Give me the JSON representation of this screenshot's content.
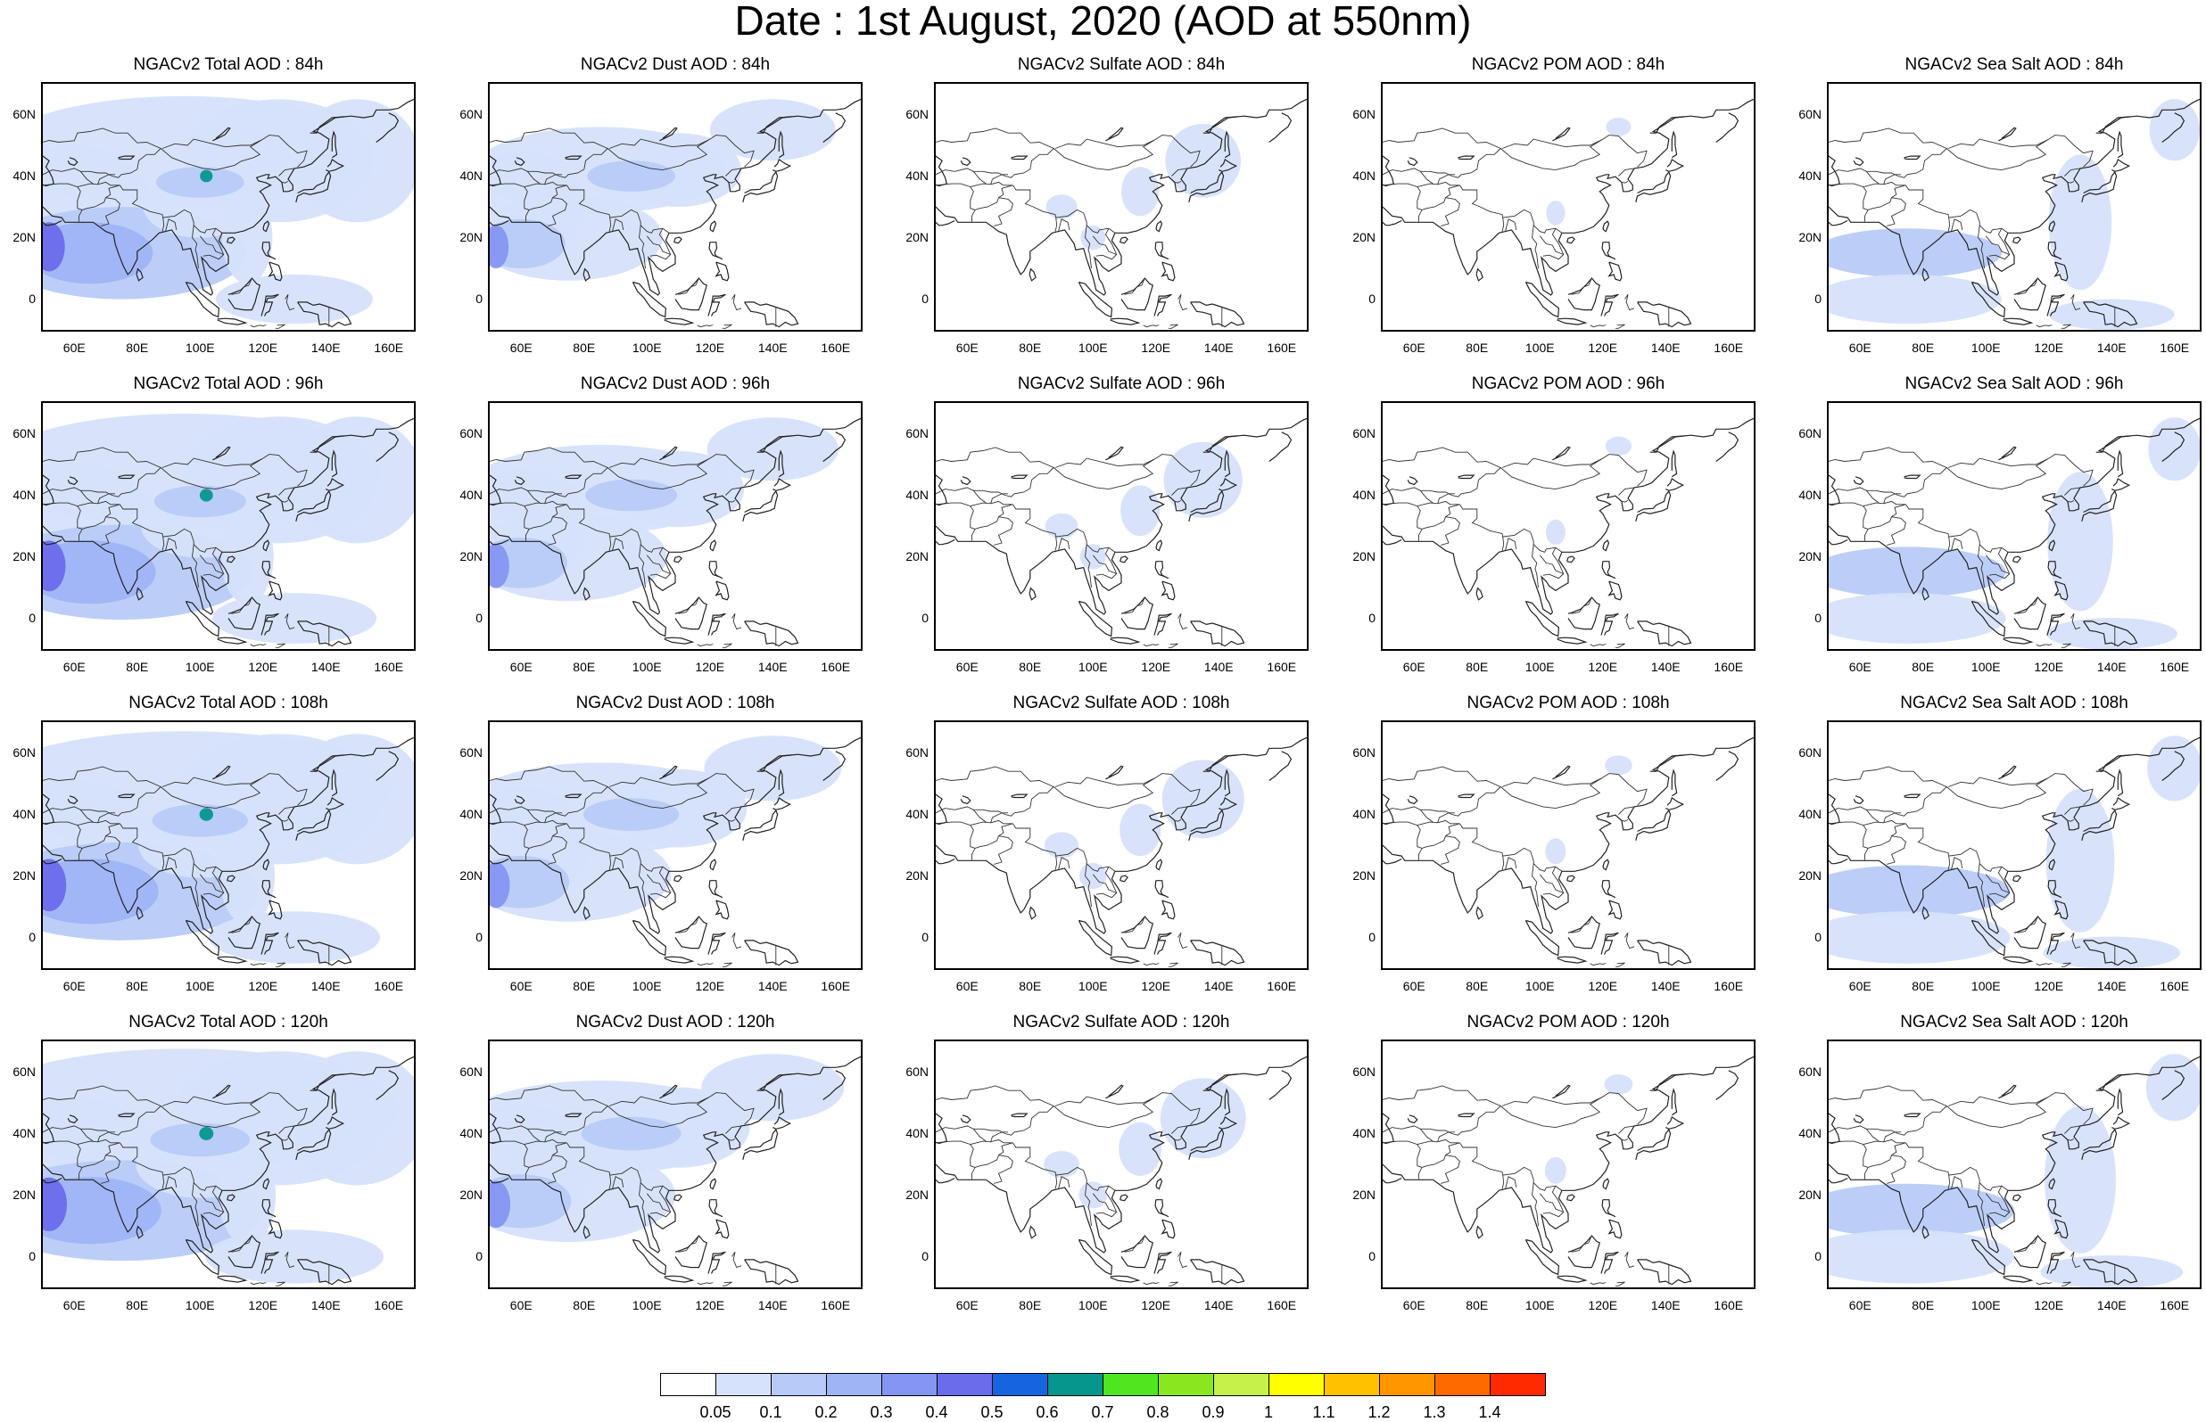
{
  "title": "Date : 1st August, 2020 (AOD at 550nm)",
  "axes": {
    "lat_labels": [
      "60N",
      "40N",
      "20N",
      "0"
    ],
    "lon_labels": [
      "60E",
      "80E",
      "100E",
      "120E",
      "140E",
      "160E"
    ]
  },
  "panels": [
    {
      "title": "NGACv2 Total AOD : 84h",
      "type": "total"
    },
    {
      "title": "NGACv2 Dust AOD : 84h",
      "type": "dust"
    },
    {
      "title": "NGACv2 Sulfate AOD : 84h",
      "type": "sulfate"
    },
    {
      "title": "NGACv2 POM AOD : 84h",
      "type": "pom"
    },
    {
      "title": "NGACv2 Sea Salt AOD : 84h",
      "type": "seasalt"
    },
    {
      "title": "NGACv2 Total AOD : 96h",
      "type": "total"
    },
    {
      "title": "NGACv2 Dust AOD : 96h",
      "type": "dust"
    },
    {
      "title": "NGACv2 Sulfate AOD : 96h",
      "type": "sulfate"
    },
    {
      "title": "NGACv2 POM AOD : 96h",
      "type": "pom"
    },
    {
      "title": "NGACv2 Sea Salt AOD : 96h",
      "type": "seasalt"
    },
    {
      "title": "NGACv2 Total AOD : 108h",
      "type": "total"
    },
    {
      "title": "NGACv2 Dust AOD : 108h",
      "type": "dust"
    },
    {
      "title": "NGACv2 Sulfate AOD : 108h",
      "type": "sulfate"
    },
    {
      "title": "NGACv2 POM AOD : 108h",
      "type": "pom"
    },
    {
      "title": "NGACv2 Sea Salt AOD : 108h",
      "type": "seasalt"
    },
    {
      "title": "NGACv2 Total AOD : 120h",
      "type": "total"
    },
    {
      "title": "NGACv2 Dust AOD : 120h",
      "type": "dust"
    },
    {
      "title": "NGACv2 Sulfate AOD : 120h",
      "type": "sulfate"
    },
    {
      "title": "NGACv2 POM AOD : 120h",
      "type": "pom"
    },
    {
      "title": "NGACv2 Sea Salt  AOD : 120h",
      "type": "seasalt"
    }
  ],
  "colorbar": {
    "labels": [
      "0.05",
      "0.1",
      "0.2",
      "0.3",
      "0.4",
      "0.5",
      "0.6",
      "0.7",
      "0.8",
      "0.9",
      "1",
      "1.1",
      "1.2",
      "1.3",
      "1.4"
    ],
    "colors": [
      "#ffffff",
      "#d6e2fb",
      "#b8cbf8",
      "#9fb4f5",
      "#8595f2",
      "#6a6cec",
      "#1565e0",
      "#06968e",
      "#4fe61f",
      "#8ae61f",
      "#c6f04a",
      "#ffff00",
      "#ffc100",
      "#ff9600",
      "#ff6a00",
      "#ff2a00"
    ]
  }
}
